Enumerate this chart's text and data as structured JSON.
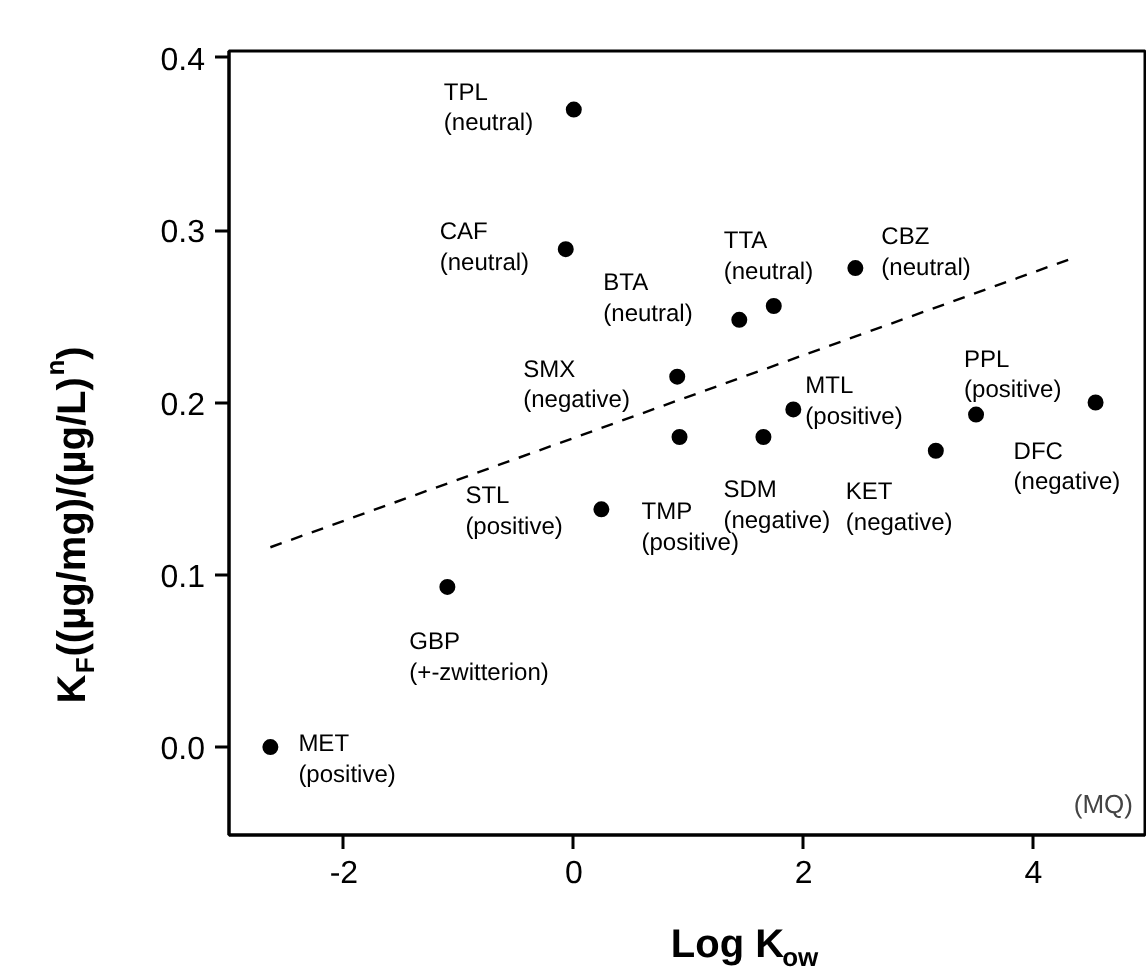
{
  "chart_data": {
    "type": "scatter",
    "xlabel": "Log K$_{ow}$",
    "ylabel": "K$_{F}$((µg/mg)/(µg/L)$^{n}$)",
    "xlim": [
      -3.0,
      4.97
    ],
    "ylim": [
      -0.051,
      0.404
    ],
    "xticks": [
      -2,
      0,
      2,
      4
    ],
    "yticks": [
      {
        "value": 0,
        "label": "0.0"
      },
      0.1,
      0.2,
      0.3,
      0.4
    ],
    "grid": false,
    "marker": "circle",
    "series": [
      {
        "color": "#000000",
        "x": [
          0.0,
          -0.07,
          1.44,
          1.74,
          2.45,
          0.9,
          1.91,
          3.5,
          4.54,
          3.15,
          1.65,
          0.92,
          0.24,
          -1.1,
          -2.64
        ],
        "values": [
          0.37,
          0.289,
          0.248,
          0.256,
          0.278,
          0.215,
          0.196,
          0.193,
          0.2,
          0.172,
          0.18,
          0.18,
          0.138,
          0.093,
          0.0
        ]
      },
      {
        "type": "line",
        "marker": "none",
        "line_style": "dashed",
        "color": "#000000",
        "x": [
          -2.64,
          4.35
        ],
        "values": [
          0.116,
          0.284
        ]
      }
    ],
    "annotations": [
      {
        "text": "TPL\n(neutral)",
        "x": 0.0,
        "y": 0.37
      },
      {
        "text": "CAF\n(neutral)",
        "x": -0.07,
        "y": 0.289
      },
      {
        "text": "BTA\n(neutral)",
        "x": 1.44,
        "y": 0.248
      },
      {
        "text": "TTA\n(neutral)",
        "x": 1.74,
        "y": 0.256
      },
      {
        "text": "CBZ\n(neutral)",
        "x": 2.45,
        "y": 0.278
      },
      {
        "text": "SMX\n(negative)",
        "x": 0.9,
        "y": 0.215
      },
      {
        "text": "MTL\n(positive)",
        "x": 1.91,
        "y": 0.196
      },
      {
        "text": "PPL\n(positive)",
        "x": 3.5,
        "y": 0.193
      },
      {
        "text": "DFC\n(negative)",
        "x": 4.54,
        "y": 0.2
      },
      {
        "text": "KET\n(negative)",
        "x": 3.15,
        "y": 0.172
      },
      {
        "text": "SDM\n(negative)",
        "x": 1.65,
        "y": 0.18
      },
      {
        "text": "TMP\n(positive)",
        "x": 0.92,
        "y": 0.18
      },
      {
        "text": "STL\n(positive)",
        "x": 0.24,
        "y": 0.138
      },
      {
        "text": "GBP\n(+-zwitterion)",
        "x": -1.1,
        "y": 0.093
      },
      {
        "text": "MET\n(positive)",
        "x": -2.64,
        "y": 0.0
      },
      "(MQ)"
    ]
  }
}
